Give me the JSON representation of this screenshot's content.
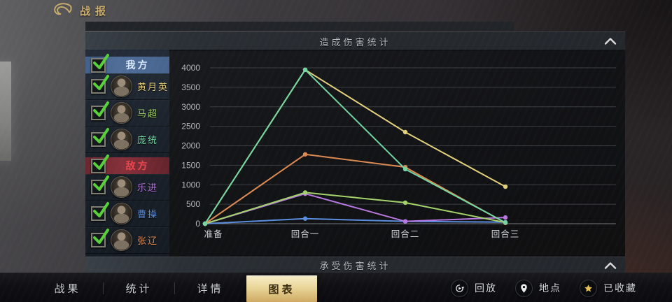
{
  "header": {
    "title": "战报"
  },
  "sections": {
    "damage_dealt": {
      "title": "造成伤害统计",
      "collapsed": false
    },
    "damage_taken": {
      "title": "承受伤害统计",
      "collapsed": true
    }
  },
  "sidebar": {
    "groups": [
      {
        "label": "我方",
        "checked": true,
        "members": [
          {
            "name": "黄月英",
            "color": "#ddc878",
            "checked": true
          },
          {
            "name": "马超",
            "color": "#a4d36b",
            "checked": true
          },
          {
            "name": "庞统",
            "color": "#74d6a3",
            "checked": true
          }
        ]
      },
      {
        "label": "敌方",
        "checked": true,
        "members": [
          {
            "name": "乐进",
            "color": "#b678e0",
            "checked": true
          },
          {
            "name": "曹操",
            "color": "#5b8dde",
            "checked": true
          },
          {
            "name": "张辽",
            "color": "#dd8a52",
            "checked": true
          }
        ]
      }
    ]
  },
  "chart_data": {
    "type": "line",
    "title": "造成伤害统计",
    "categories": [
      "准备",
      "回合一",
      "回合二",
      "回合三"
    ],
    "series": [
      {
        "name": "曹操",
        "color": "#5b8dde",
        "values": [
          0,
          130,
          60,
          40
        ]
      },
      {
        "name": "乐进",
        "color": "#b678e0",
        "values": [
          0,
          770,
          60,
          160
        ]
      },
      {
        "name": "马超",
        "color": "#a4d36b",
        "values": [
          0,
          800,
          540,
          30
        ]
      },
      {
        "name": "张辽",
        "color": "#dd8a52",
        "values": [
          0,
          1780,
          1450,
          20
        ]
      },
      {
        "name": "黄月英",
        "color": "#e3d07b",
        "values": [
          0,
          3950,
          2350,
          950
        ]
      },
      {
        "name": "庞统",
        "color": "#74d6a3",
        "values": [
          0,
          3950,
          1400,
          30
        ]
      }
    ],
    "xlabel": "",
    "ylabel": "",
    "ylim": [
      0,
      4000
    ],
    "ytick_step": 500,
    "grid": true,
    "legend_position": "none"
  },
  "tabs": [
    {
      "label": "战果",
      "active": false
    },
    {
      "label": "统计",
      "active": false
    },
    {
      "label": "详情",
      "active": false
    },
    {
      "label": "图表",
      "active": true
    }
  ],
  "actions": [
    {
      "label": "回放",
      "icon": "replay-icon"
    },
    {
      "label": "地点",
      "icon": "location-icon"
    },
    {
      "label": "已收藏",
      "icon": "star-icon"
    }
  ],
  "colors": {
    "accent_gold": "#c9ad6c",
    "check_green": "#57d03a",
    "ally_text": "#d8e7fb",
    "enemy_text": "#e8474e",
    "tab_active_text": "#3b2d10"
  }
}
